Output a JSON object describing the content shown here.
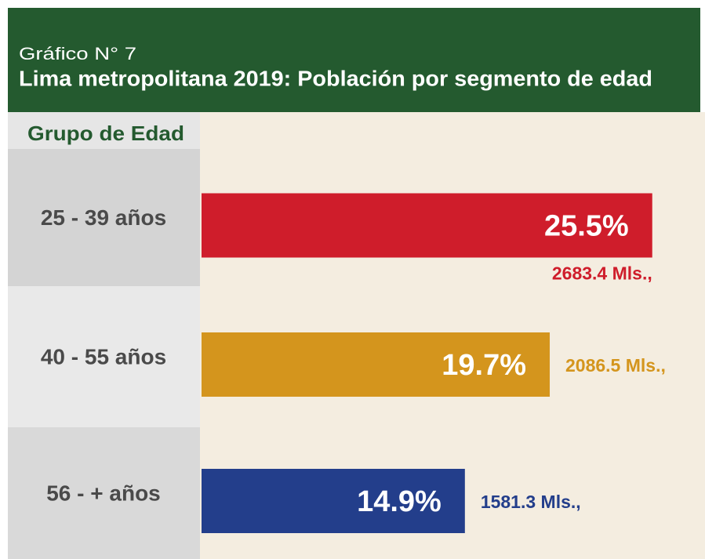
{
  "chart_data": {
    "type": "hbar",
    "caption": "Gráfico N° 7",
    "title": "Lima metropolitana 2019: Población por segmento de edad",
    "y_label": "Grupo de Edad",
    "categories": [
      "25 - 39 años",
      "40 - 55 años",
      "56 - + años"
    ],
    "values": [
      25.5,
      19.7,
      14.9
    ],
    "value_labels": [
      "25.5%",
      "19.7%",
      "14.9%"
    ],
    "secondary_values": [
      2683.4,
      2086.5,
      1581.3
    ],
    "secondary_value_labels": [
      "2683.4 Mls.,",
      "2086.5 Mls.,",
      "1581.3 Mls.,"
    ],
    "colors": [
      "#cf1d2b",
      "#d4951d",
      "#233e8b"
    ],
    "xlim": [
      0,
      26
    ]
  }
}
